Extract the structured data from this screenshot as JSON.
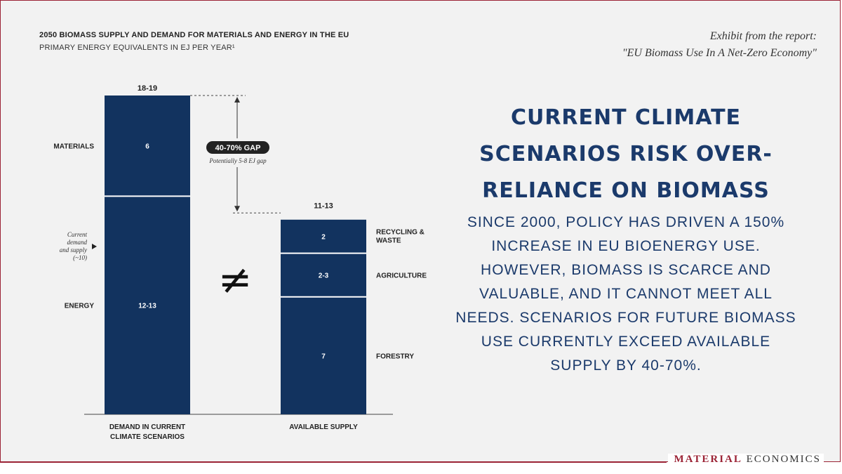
{
  "exhibit": {
    "line1": "Exhibit from the report:",
    "line2": "\"EU Biomass Use In A Net-Zero Economy\""
  },
  "headline": "CURRENT CLIMATE SCENARIOS RISK OVER-RELIANCE ON BIOMASS",
  "body": "SINCE 2000, POLICY HAS DRIVEN A 150% INCREASE IN EU BIOENERGY USE. HOWEVER, BIOMASS IS SCARCE AND VALUABLE, AND IT CANNOT MEET ALL NEEDS. SCENARIOS FOR FUTURE BIOMASS USE CURRENTLY EXCEED AVAILABLE SUPPLY BY 40-70%.",
  "brand": {
    "part1": "MATERIAL",
    "part2": "ECONOMICS"
  },
  "colors": {
    "bar": "#12335f",
    "accent": "#9b2335",
    "text": "#1b3a6b",
    "background": "#f2f2f2"
  },
  "chart_data": {
    "type": "bar",
    "stacked": true,
    "title": "2050 BIOMASS SUPPLY AND DEMAND FOR MATERIALS AND ENERGY IN THE EU",
    "subtitle": "PRIMARY ENERGY EQUIVALENTS IN EJ PER YEAR¹",
    "unit": "EJ per year",
    "ylim": [
      0,
      19
    ],
    "categories": [
      "DEMAND IN CURRENT CLIMATE SCENARIOS",
      "AVAILABLE SUPPLY"
    ],
    "bars": [
      {
        "category": "DEMAND IN CURRENT CLIMATE SCENARIOS",
        "total_label": "18-19",
        "total": 19,
        "segments": [
          {
            "name": "ENERGY",
            "label": "12-13",
            "value": 13
          },
          {
            "name": "MATERIALS",
            "label": "6",
            "value": 6
          }
        ]
      },
      {
        "category": "AVAILABLE SUPPLY",
        "total_label": "11-13",
        "total": 12,
        "segments": [
          {
            "name": "FORESTRY",
            "label": "7",
            "value": 7
          },
          {
            "name": "AGRICULTURE",
            "label": "2-3",
            "value": 2.6
          },
          {
            "name": "RECYCLING & WASTE",
            "label": "2",
            "value": 2
          }
        ]
      }
    ],
    "gap": {
      "label": "40-70% GAP",
      "note": "Potentially 5-8 EJ gap"
    },
    "marker": {
      "label": [
        "Current",
        "demand",
        "and supply",
        "(~10)"
      ],
      "value": 10
    },
    "inequality_symbol": "≠"
  }
}
